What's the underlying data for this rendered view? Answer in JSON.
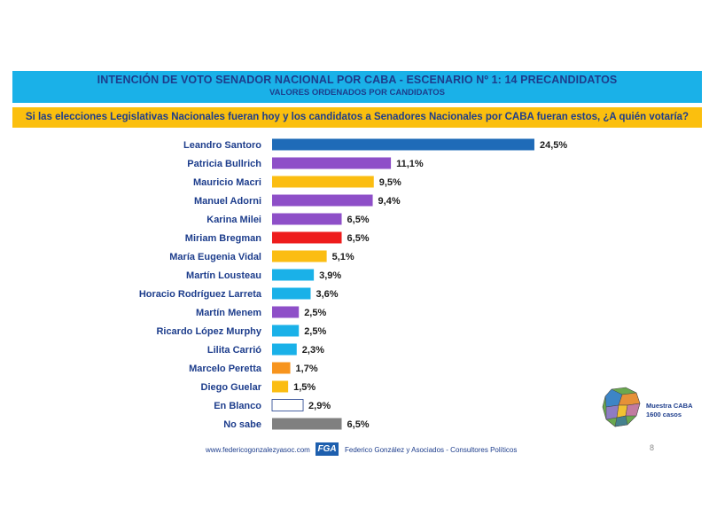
{
  "header": {
    "title": "INTENCIÓN DE VOTO SENADOR NACIONAL POR CABA - ESCENARIO Nº 1: 14 PRECANDIDATOS",
    "subtitle": "VALORES ORDENADOS POR CANDIDATOS"
  },
  "question": "Si las elecciones Legislativas Nacionales fueran hoy y los candidatos a Senadores Nacionales por CABA fueran estos, ¿A quién votaría?",
  "chart_data": {
    "type": "bar",
    "orientation": "horizontal",
    "categories": [
      "Leandro Santoro",
      "Patricia Bullrich",
      "Mauricio Macri",
      "Manuel Adorni",
      "Karina Milei",
      "Miriam Bregman",
      "María Eugenia Vidal",
      "Martín Lousteau",
      "Horacio Rodríguez Larreta",
      "Martín Menem",
      "Ricardo López Murphy",
      "Lilita Carrió",
      "Marcelo Peretta",
      "Diego Guelar",
      "En Blanco",
      "No sabe"
    ],
    "values": [
      24.5,
      11.1,
      9.5,
      9.4,
      6.5,
      6.5,
      5.1,
      3.9,
      3.6,
      2.5,
      2.5,
      2.3,
      1.7,
      1.5,
      2.9,
      6.5
    ],
    "labels": [
      "24,5%",
      "11,1%",
      "9,5%",
      "9,4%",
      "6,5%",
      "6,5%",
      "5,1%",
      "3,9%",
      "3,6%",
      "2,5%",
      "2,5%",
      "2,3%",
      "1,7%",
      "1,5%",
      "2,9%",
      "6,5%"
    ],
    "colors": [
      "#1f6bb8",
      "#8e4fc8",
      "#fbbd12",
      "#8e4fc8",
      "#8e4fc8",
      "#ee1c1c",
      "#fbbd12",
      "#1ab1e8",
      "#1ab1e8",
      "#8e4fc8",
      "#1ab1e8",
      "#1ab1e8",
      "#f7941d",
      "#fbbd12",
      "#ffffff",
      "#808080"
    ],
    "xlim": [
      0,
      25
    ],
    "grid": false,
    "legend": "none"
  },
  "footer": {
    "url": "www.federicogonzalezyasoc.com",
    "logo_text": "FGA",
    "firm": "Federico González y Asociados - Consultores Políticos",
    "page": "8"
  },
  "sample": {
    "line1": "Muestra CABA",
    "line2": "1600 casos"
  }
}
